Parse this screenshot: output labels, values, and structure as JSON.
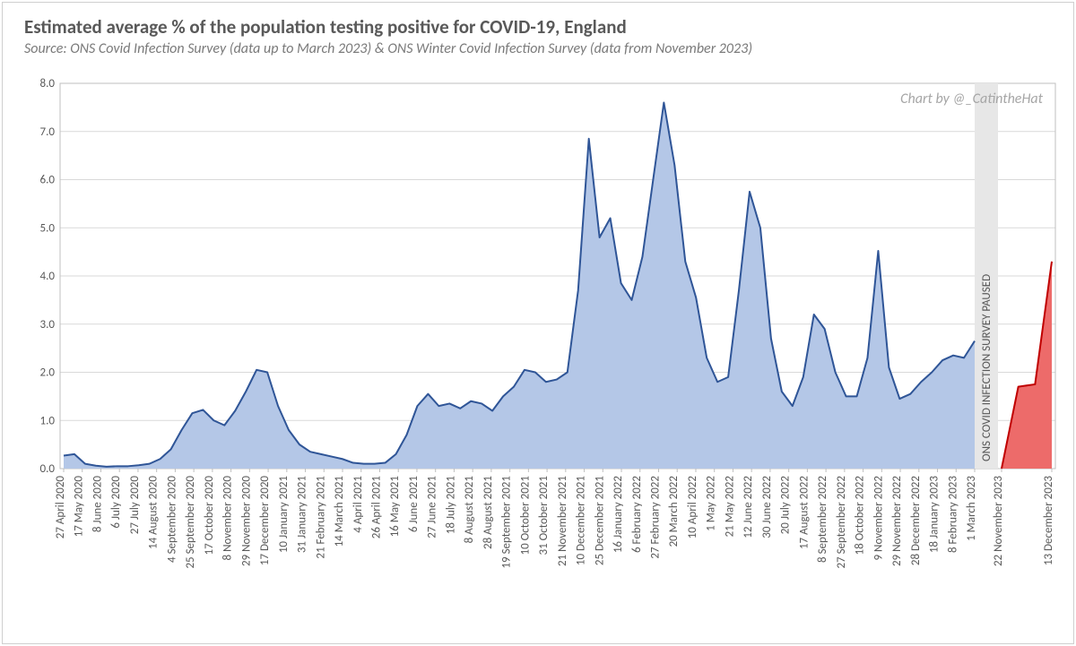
{
  "title": "Estimated average % of the population testing positive for COVID-19, England",
  "subtitle": "Source: ONS Covid Infection Survey (data up to March 2023) & ONS Winter Covid Infection Survey (data from November 2023)",
  "credit": "Chart by @_CatintheHat",
  "pause_label": "ONS COVID INFECTION SURVEY PAUSED",
  "chart": {
    "type": "area",
    "ylim": [
      0.0,
      8.0
    ],
    "ytick_step": 1.0,
    "title_fontsize": 21,
    "subtitle_fontsize": 16,
    "label_fontsize": 13,
    "background_color": "#ffffff",
    "grid_color": "#d9d9d9",
    "border_color": "#bfbfbf",
    "main_series": {
      "fill_color": "#b4c7e7",
      "line_color": "#2f5597",
      "line_width": 2,
      "x_labels": [
        "27 April 2020",
        "17 May 2020",
        "8 June 2020",
        "6 July 2020",
        "27 July 2020",
        "14 August 2020",
        "4 September 2020",
        "25 September 2020",
        "17 October 2020",
        "8 November 2020",
        "29 November 2020",
        "17 December 2020",
        "10 January 2021",
        "31 January 2021",
        "21 February 2021",
        "14 March 2021",
        "4 April 2021",
        "26 April 2021",
        "16 May 2021",
        "6 June 2021",
        "27 June 2021",
        "18 July 2021",
        "8 August 2021",
        "28 August 2021",
        "19 September 2021",
        "10 October 2021",
        "31 October 2021",
        "21 November 2021",
        "10 December 2021",
        "25 December 2021",
        "16 January 2022",
        "6 February 2022",
        "27 February 2022",
        "20 March 2022",
        "10 April 2022",
        "1 May 2022",
        "21 May 2022",
        "12 June 2022",
        "30 June 2022",
        "20 July 2022",
        "17 August 2022",
        "8 September 2022",
        "27 September 2022",
        "18 October 2022",
        "9 November 2022",
        "29 November 2022",
        "28 December 2022",
        "18 January 2023",
        "8 February 2023",
        "1 March 2023"
      ],
      "values": [
        0.27,
        0.3,
        0.1,
        0.06,
        0.04,
        0.05,
        0.05,
        0.07,
        0.1,
        0.2,
        0.4,
        0.8,
        1.15,
        1.22,
        1.0,
        0.9,
        1.2,
        1.6,
        2.05,
        2.0,
        1.3,
        0.8,
        0.5,
        0.35,
        0.3,
        0.25,
        0.2,
        0.12,
        0.1,
        0.1,
        0.12,
        0.3,
        0.7,
        1.3,
        1.55,
        1.3,
        1.35,
        1.25,
        1.4,
        1.35,
        1.2,
        1.5,
        1.7,
        2.05,
        2.0,
        1.8,
        1.85,
        2.0,
        3.7,
        6.85,
        4.8,
        5.2,
        3.85,
        3.5,
        4.4,
        6.0,
        7.6,
        6.3,
        4.3,
        3.55,
        2.3,
        1.8,
        1.9,
        3.7,
        5.75,
        5.0,
        2.7,
        1.6,
        1.3,
        1.9,
        3.2,
        2.9,
        2.0,
        1.5,
        1.5,
        2.3,
        4.52,
        2.1,
        1.45,
        1.55,
        1.8,
        2.0,
        2.25,
        2.35,
        2.3,
        2.65
      ]
    },
    "pause_band": {
      "fill_color": "#e7e7e7"
    },
    "winter_series": {
      "fill_color": "#ed6b6a",
      "line_color": "#c00000",
      "line_width": 2,
      "x_labels": [
        "22 November 2023",
        "13 December 2023"
      ],
      "values": [
        0.0,
        1.7,
        1.75,
        4.3
      ]
    }
  }
}
